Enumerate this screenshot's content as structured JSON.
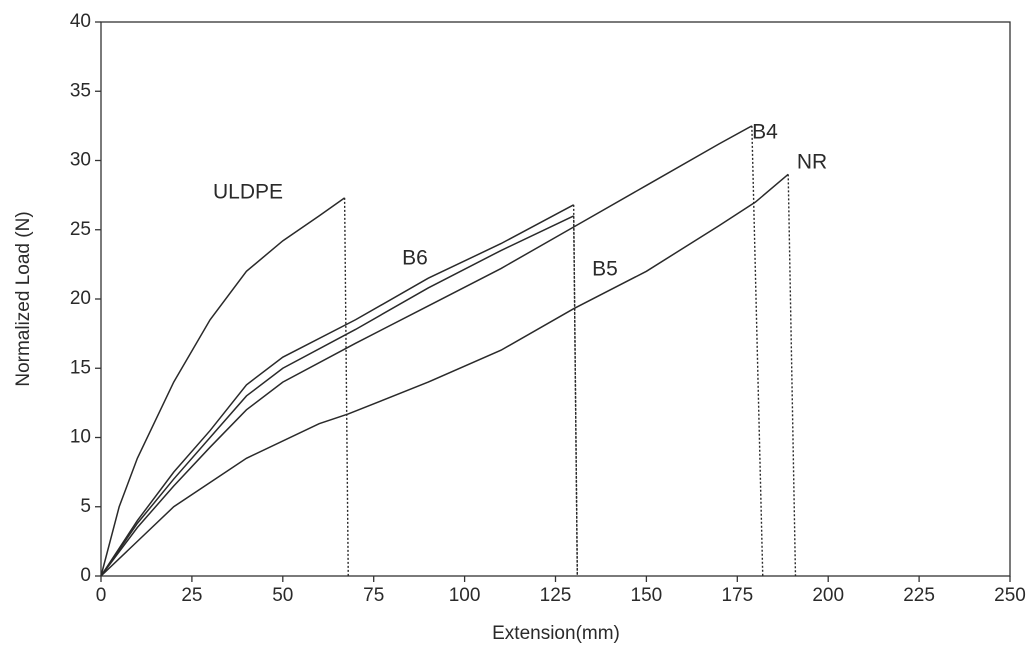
{
  "chart_data": {
    "type": "line",
    "x_label": "Extension(mm)",
    "y_label": "Normalized Load (N)",
    "xlim": [
      0,
      250
    ],
    "xticks": [
      0,
      25,
      50,
      75,
      100,
      125,
      150,
      175,
      200,
      225,
      250
    ],
    "ylim": [
      0,
      40
    ],
    "yticks": [
      0,
      5,
      10,
      15,
      20,
      25,
      30,
      35,
      40
    ],
    "grid": false,
    "final_segment": "dotted",
    "series": [
      {
        "name": "ULDPE",
        "color": "#2a2a2a",
        "x": [
          0,
          5,
          10,
          20,
          30,
          40,
          50,
          60,
          67,
          68
        ],
        "values": [
          0,
          5,
          8.5,
          14,
          18.5,
          22,
          24.2,
          26,
          27.3,
          0
        ]
      },
      {
        "name": "B6",
        "color": "#2a2a2a",
        "x": [
          0,
          10,
          20,
          30,
          40,
          50,
          70,
          90,
          110,
          130,
          131
        ],
        "values": [
          0,
          4,
          7.5,
          10.5,
          13.8,
          15.8,
          18.5,
          21.5,
          24,
          26.8,
          0
        ]
      },
      {
        "name": "B5",
        "color": "#2a2a2a",
        "x": [
          0,
          10,
          20,
          30,
          40,
          50,
          70,
          90,
          110,
          130,
          131
        ],
        "values": [
          0,
          3.8,
          7,
          10,
          13,
          15,
          17.8,
          20.8,
          23.5,
          26,
          0
        ]
      },
      {
        "name": "B4",
        "color": "#2a2a2a",
        "x": [
          0,
          10,
          20,
          30,
          40,
          50,
          70,
          90,
          110,
          130,
          150,
          170,
          179,
          182
        ],
        "values": [
          0,
          3.5,
          6.5,
          9.3,
          12,
          14,
          16.8,
          19.5,
          22.2,
          25.2,
          28.2,
          31.2,
          32.5,
          0
        ]
      },
      {
        "name": "NR",
        "color": "#2a2a2a",
        "x": [
          0,
          10,
          20,
          40,
          60,
          68,
          90,
          110,
          130,
          150,
          170,
          180,
          189,
          191
        ],
        "values": [
          0,
          2.5,
          5,
          8.5,
          11,
          11.7,
          14,
          16.3,
          19.3,
          22,
          25.3,
          27,
          29,
          0
        ]
      }
    ]
  }
}
